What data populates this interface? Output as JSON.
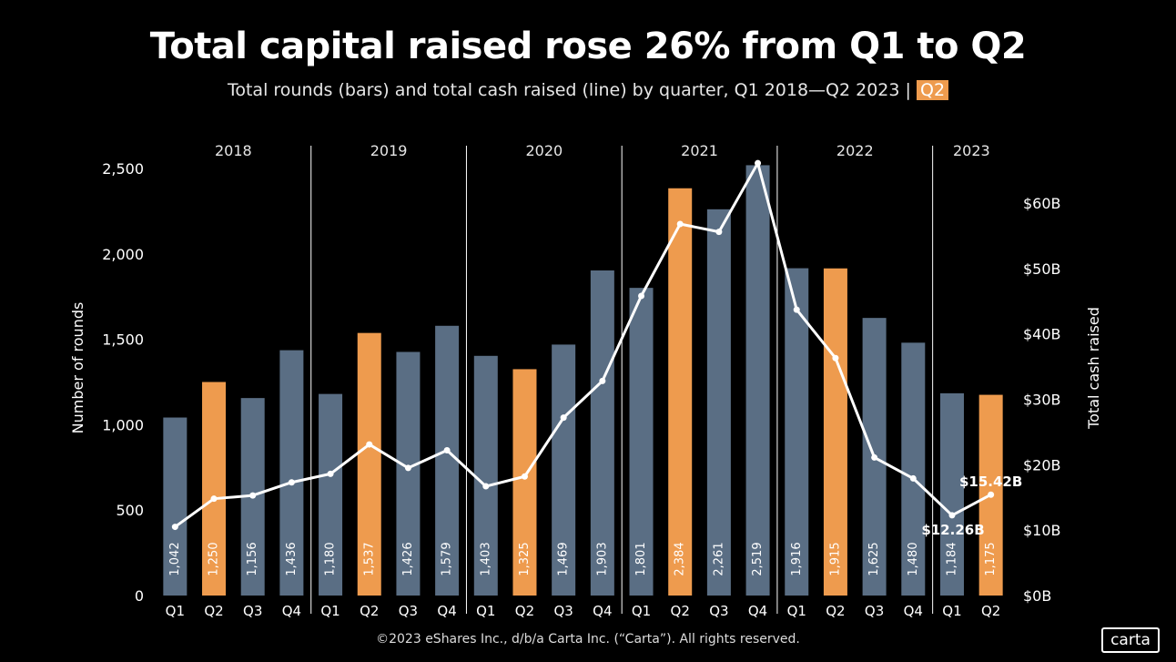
{
  "title": "Total capital raised rose 26% from Q1 to Q2",
  "subtitle": {
    "text": "Total rounds (bars) and total cash raised (line) by quarter, Q1 2018—Q2 2023 |",
    "highlight": "Q2"
  },
  "footer": "©2023 eShares Inc., d/b/a Carta Inc. (“Carta”). All rights reserved.",
  "logo": "carta",
  "colors": {
    "bar_default": "#5a6e84",
    "bar_highlight": "#ee9b4e",
    "line": "#ffffff",
    "background": "#000000"
  },
  "chart_data": {
    "type": "bar",
    "years": [
      "2018",
      "2019",
      "2020",
      "2021",
      "2022",
      "2023"
    ],
    "categories": [
      "Q1",
      "Q2",
      "Q3",
      "Q4",
      "Q1",
      "Q2",
      "Q3",
      "Q4",
      "Q1",
      "Q2",
      "Q3",
      "Q4",
      "Q1",
      "Q2",
      "Q3",
      "Q4",
      "Q1",
      "Q2",
      "Q3",
      "Q4",
      "Q1",
      "Q2"
    ],
    "series": [
      {
        "type": "bar",
        "values": [
          1042,
          1250,
          1156,
          1436,
          1180,
          1537,
          1426,
          1579,
          1403,
          1325,
          1469,
          1903,
          1801,
          2384,
          2261,
          2519,
          1916,
          1915,
          1625,
          1480,
          1184,
          1175
        ],
        "labels": [
          "1,042",
          "1,250",
          "1,156",
          "1,436",
          "1,180",
          "1,537",
          "1,426",
          "1,579",
          "1,403",
          "1,325",
          "1,469",
          "1,903",
          "1,801",
          "2,384",
          "2,261",
          "2,519",
          "1,916",
          "1,915",
          "1,625",
          "1,480",
          "1,184",
          "1,175"
        ],
        "highlight": [
          false,
          true,
          false,
          false,
          false,
          true,
          false,
          false,
          false,
          true,
          false,
          false,
          false,
          true,
          false,
          false,
          false,
          true,
          false,
          false,
          false,
          true
        ]
      },
      {
        "type": "line",
        "axis": "right",
        "values": [
          10.5,
          14.8,
          15.3,
          17.3,
          18.6,
          23.1,
          19.5,
          22.2,
          16.7,
          18.2,
          27.2,
          32.8,
          45.8,
          56.8,
          55.6,
          66.1,
          43.7,
          36.3,
          21.1,
          17.9,
          12.26,
          15.42
        ]
      }
    ],
    "annotations": [
      {
        "index": 20,
        "text": "$12.26B"
      },
      {
        "index": 21,
        "text": "$15.42B"
      }
    ],
    "ylabel": "Number of rounds",
    "ylabel_right": "Total cash raised",
    "ylim": [
      0,
      2500
    ],
    "ylim_right": [
      0,
      65
    ],
    "yticks": [
      0,
      500,
      1000,
      1500,
      2000,
      2500
    ],
    "yticks_labels": [
      "0",
      "500",
      "1,000",
      "1,500",
      "2,000",
      "2,500"
    ],
    "yticks_right": [
      0,
      10,
      20,
      30,
      40,
      50,
      60
    ],
    "yticks_right_labels": [
      "$0B",
      "$10B",
      "$20B",
      "$30B",
      "$40B",
      "$50B",
      "$60B"
    ],
    "grid": false
  }
}
